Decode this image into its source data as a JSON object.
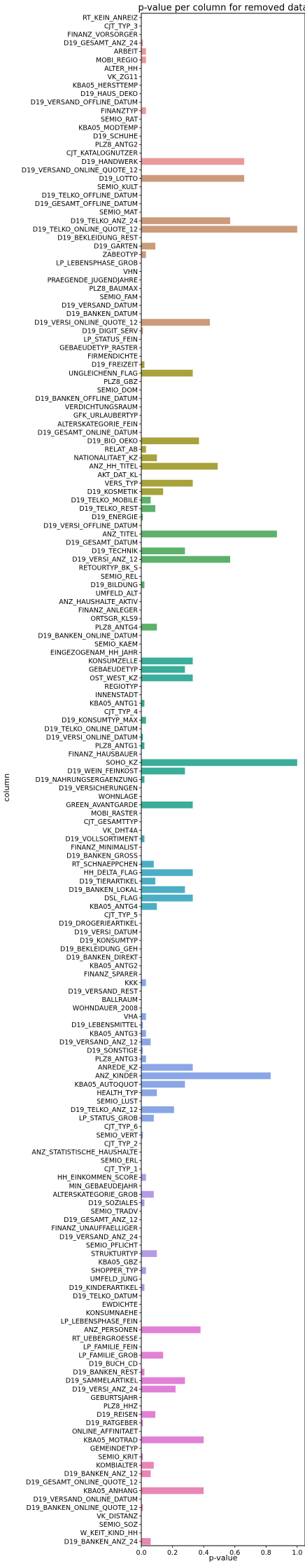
{
  "chart_data": {
    "type": "bar",
    "orientation": "horizontal",
    "title": "p-value per column for removed data",
    "xlabel": "p-value",
    "ylabel": "column",
    "xlim": [
      0,
      1.05
    ],
    "xticks": [
      0.0,
      0.2,
      0.4,
      0.6,
      0.8,
      1.0
    ],
    "xtick_labels": [
      "0.0",
      "0.2",
      "0.4",
      "0.6",
      "0.8",
      "1.0"
    ],
    "grid": false,
    "legend": "none",
    "palette": [
      "#ea9a9a",
      "#cc9b7c",
      "#a8a23c",
      "#5db16a",
      "#3aae9a",
      "#4caec4",
      "#8aa6e6",
      "#b59ae6",
      "#e181d6",
      "#e986b4"
    ],
    "categories": [
      "RT_KEIN_ANREIZ",
      "CJT_TYP_3",
      "FINANZ_VORSORGER",
      "D19_GESAMT_ANZ_24",
      "ARBEIT",
      "MOBI_REGIO",
      "ALTER_HH",
      "VK_ZG11",
      "KBA05_HERSTTEMP",
      "D19_HAUS_DEKO",
      "D19_VERSAND_OFFLINE_DATUM",
      "FINANZTYP",
      "SEMIO_RAT",
      "KBA05_MODTEMP",
      "D19_SCHUHE",
      "PLZ8_ANTG2",
      "CJT_KATALOGNUTZER",
      "D19_HANDWERK",
      "D19_VERSAND_ONLINE_QUOTE_12",
      "D19_LOTTO",
      "SEMIO_KULT",
      "D19_TELKO_OFFLINE_DATUM",
      "D19_GESAMT_OFFLINE_DATUM",
      "SEMIO_MAT",
      "D19_TELKO_ANZ_24",
      "D19_TELKO_ONLINE_QUOTE_12",
      "D19_BEKLEIDUNG_REST",
      "D19_GARTEN",
      "ZABEOTYP",
      "LP_LEBENSPHASE_GROB",
      "VHN",
      "PRAEGENDE_JUGENDJAHRE",
      "PLZ8_BAUMAX",
      "SEMIO_FAM",
      "D19_VERSAND_DATUM",
      "D19_BANKEN_DATUM",
      "D19_VERSI_ONLINE_QUOTE_12",
      "D19_DIGIT_SERV",
      "LP_STATUS_FEIN",
      "GEBAEUDETYP_RASTER",
      "FIRMENDICHTE",
      "D19_FREIZEIT",
      "UNGLEICHENN_FLAG",
      "PLZ8_GBZ",
      "SEMIO_DOM",
      "D19_BANKEN_OFFLINE_DATUM",
      "VERDICHTUNGSRAUM",
      "GFK_URLAUBERTYP",
      "ALTERSKATEGORIE_FEIN",
      "D19_GESAMT_ONLINE_DATUM",
      "D19_BIO_OEKO",
      "RELAT_AB",
      "NATIONALITAET_KZ",
      "ANZ_HH_TITEL",
      "AKT_DAT_KL",
      "VERS_TYP",
      "D19_KOSMETIK",
      "D19_TELKO_MOBILE",
      "D19_TELKO_REST",
      "D19_ENERGIE",
      "D19_VERSI_OFFLINE_DATUM",
      "ANZ_TITEL",
      "D19_GESAMT_DATUM",
      "D19_TECHNIK",
      "D19_VERSI_ANZ_12",
      "RETOURTYP_BK_S",
      "SEMIO_REL",
      "D19_BILDUNG",
      "UMFELD_ALT",
      "ANZ_HAUSHALTE_AKTIV",
      "FINANZ_ANLEGER",
      "ORTSGR_KLS9",
      "PLZ8_ANTG4",
      "D19_BANKEN_ONLINE_DATUM",
      "SEMIO_KAEM",
      "EINGEZOGENAM_HH_JAHR",
      "KONSUMZELLE",
      "GEBAEUDETYP",
      "OST_WEST_KZ",
      "REGIOTYP",
      "INNENSTADT",
      "KBA05_ANTG1",
      "CJT_TYP_4",
      "D19_KONSUMTYP_MAX",
      "D19_TELKO_ONLINE_DATUM",
      "D19_VERSI_ONLINE_DATUM",
      "PLZ8_ANTG1",
      "FINANZ_HAUSBAUER",
      "SOHO_KZ",
      "D19_WEIN_FEINKOST",
      "D19_NAHRUNGSERGAENZUNG",
      "D19_VERSICHERUNGEN",
      "WOHNLAGE",
      "GREEN_AVANTGARDE",
      "MOBI_RASTER",
      "CJT_GESAMTTYP",
      "VK_DHT4A",
      "D19_VOLLSORTIMENT",
      "FINANZ_MINIMALIST",
      "D19_BANKEN_GROSS",
      "RT_SCHNAEPPCHEN",
      "HH_DELTA_FLAG",
      "D19_TIERARTIKEL",
      "D19_BANKEN_LOKAL",
      "DSL_FLAG",
      "KBA05_ANTG4",
      "CJT_TYP_5",
      "D19_DROGERIEARTIKEL",
      "D19_VERSI_DATUM",
      "D19_KONSUMTYP",
      "D19_BEKLEIDUNG_GEH",
      "D19_BANKEN_DIREKT",
      "KBA05_ANTG2",
      "FINANZ_SPARER",
      "KKK",
      "D19_VERSAND_REST",
      "BALLRAUM",
      "WOHNDAUER_2008",
      "VHA",
      "D19_LEBENSMITTEL",
      "KBA05_ANTG3",
      "D19_VERSAND_ANZ_12",
      "D19_SONSTIGE",
      "PLZ8_ANTG3",
      "ANREDE_KZ",
      "ANZ_KINDER",
      "KBA05_AUTOQUOT",
      "HEALTH_TYP",
      "SEMIO_LUST",
      "D19_TELKO_ANZ_12",
      "LP_STATUS_GROB",
      "CJT_TYP_6",
      "SEMIO_VERT",
      "CJT_TYP_2",
      "ANZ_STATISTISCHE_HAUSHALTE",
      "SEMIO_ERL",
      "CJT_TYP_1",
      "HH_EINKOMMEN_SCORE",
      "MIN_GEBAEUDEJAHR",
      "ALTERSKATEGORIE_GROB",
      "D19_SOZIALES",
      "SEMIO_TRADV",
      "D19_GESAMT_ANZ_12",
      "FINANZ_UNAUFFAELLIGER",
      "D19_VERSAND_ANZ_24",
      "SEMIO_PFLICHT",
      "STRUKTURTYP",
      "KBA05_GBZ",
      "SHOPPER_TYP",
      "UMFELD_JUNG",
      "D19_KINDERARTIKEL",
      "D19_TELKO_DATUM",
      "EWDICHTE",
      "KONSUMNAEHE",
      "LP_LEBENSPHASE_FEIN",
      "ANZ_PERSONEN",
      "RT_UEBERGROESSE",
      "LP_FAMILIE_FEIN",
      "LP_FAMILIE_GROB",
      "D19_BUCH_CD",
      "D19_BANKEN_REST",
      "D19_SAMMELARTIKEL",
      "D19_VERSI_ANZ_24",
      "GEBURTSJAHR",
      "PLZ8_HHZ",
      "D19_REISEN",
      "D19_RATGEBER",
      "ONLINE_AFFINITAET",
      "KBA05_MOTRAD",
      "GEMEINDETYP",
      "SEMIO_KRIT",
      "KOMBIALTER",
      "D19_BANKEN_ANZ_12",
      "D19_GESAMT_ONLINE_QUOTE_12",
      "KBA05_ANHANG",
      "D19_VERSAND_ONLINE_DATUM",
      "D19_BANKEN_ONLINE_QUOTE_12",
      "VK_DISTANZ",
      "SEMIO_SOZ",
      "W_KEIT_KIND_HH",
      "D19_BANKEN_ANZ_24"
    ],
    "values": [
      0.0,
      0.0,
      0.0,
      0.01,
      0.03,
      0.03,
      0.0,
      0.0,
      0.0,
      0.0,
      0.0,
      0.03,
      0.0,
      0.0,
      0.0,
      0.0,
      0.0,
      0.66,
      0.0,
      0.66,
      0.0,
      0.0,
      0.0,
      0.0,
      0.57,
      1.0,
      0.0,
      0.09,
      0.03,
      0.0,
      0.0,
      0.0,
      0.0,
      0.0,
      0.0,
      0.0,
      0.44,
      0.01,
      0.0,
      0.0,
      0.0,
      0.02,
      0.33,
      0.0,
      0.0,
      0.0,
      0.0,
      0.0,
      0.0,
      0.0,
      0.37,
      0.03,
      0.1,
      0.49,
      0.0,
      0.33,
      0.14,
      0.06,
      0.09,
      0.01,
      0.0,
      0.87,
      0.0,
      0.28,
      0.57,
      0.0,
      0.0,
      0.02,
      0.0,
      0.0,
      0.0,
      0.0,
      0.1,
      0.0,
      0.0,
      0.0,
      0.33,
      0.28,
      0.33,
      0.0,
      0.0,
      0.02,
      0.0,
      0.03,
      0.0,
      0.01,
      0.02,
      0.0,
      1.0,
      0.28,
      0.02,
      0.0,
      0.0,
      0.33,
      0.0,
      0.0,
      0.0,
      0.02,
      0.0,
      0.0,
      0.08,
      0.33,
      0.09,
      0.28,
      0.33,
      0.1,
      0.0,
      0.0,
      0.0,
      0.0,
      0.0,
      0.0,
      0.0,
      0.0,
      0.03,
      0.0,
      0.0,
      0.0,
      0.03,
      0.01,
      0.03,
      0.06,
      0.01,
      0.03,
      0.33,
      0.83,
      0.28,
      0.1,
      0.0,
      0.21,
      0.08,
      0.0,
      0.01,
      0.0,
      0.0,
      0.0,
      0.0,
      0.03,
      0.0,
      0.08,
      0.02,
      0.0,
      0.0,
      0.0,
      0.0,
      0.0,
      0.1,
      0.0,
      0.03,
      0.0,
      0.02,
      0.0,
      0.0,
      0.0,
      0.0,
      0.38,
      0.0,
      0.0,
      0.14,
      0.0,
      0.02,
      0.28,
      0.22,
      0.0,
      0.0,
      0.09,
      0.01,
      0.0,
      0.4,
      0.0,
      0.01,
      0.08,
      0.06,
      0.0,
      0.4,
      0.0,
      0.01,
      0.0,
      0.0,
      0.0,
      0.06
    ]
  }
}
